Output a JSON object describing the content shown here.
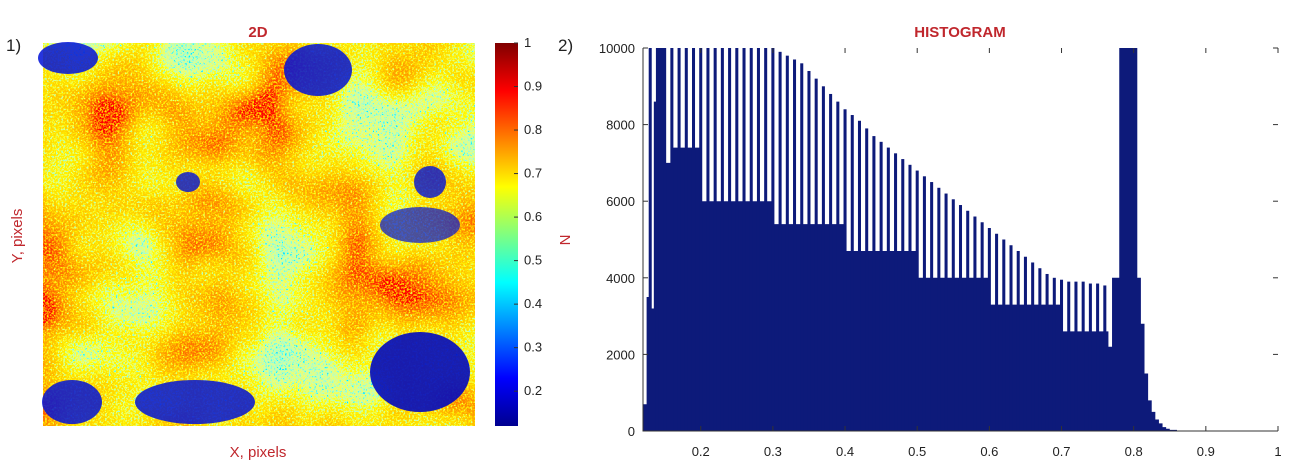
{
  "colors": {
    "title": "#c0272d",
    "bars": "#0d1a7a",
    "axis": "#333333",
    "colormap": [
      "#00008f",
      "#0000ff",
      "#0080ff",
      "#00ffff",
      "#80ff80",
      "#ffff00",
      "#ff8000",
      "#ff0000",
      "#800000"
    ]
  },
  "chart_data": [
    {
      "type": "heatmap",
      "panel_label": "1)",
      "title": "2D",
      "xlabel": "X, pixels",
      "ylabel": "Y, pixels",
      "colormap": "jet",
      "colorbar": {
        "ticks": [
          "0.2",
          "0.3",
          "0.4",
          "0.5",
          "0.6",
          "0.7",
          "0.8",
          "0.9",
          "1"
        ],
        "tick_values": [
          0.2,
          0.3,
          0.4,
          0.5,
          0.6,
          0.7,
          0.8,
          0.9,
          1.0
        ],
        "range": [
          0.12,
          1.0
        ]
      }
    },
    {
      "type": "bar",
      "panel_label": "2)",
      "title": "HISTOGRAM",
      "xlabel": "",
      "ylabel": "N",
      "xlim": [
        0.12,
        1.0
      ],
      "ylim": [
        0,
        10000
      ],
      "xticks": [
        "0.2",
        "0.3",
        "0.4",
        "0.5",
        "0.6",
        "0.7",
        "0.8",
        "0.9",
        "1"
      ],
      "xtick_values": [
        0.2,
        0.3,
        0.4,
        0.5,
        0.6,
        0.7,
        0.8,
        0.9,
        1.0
      ],
      "yticks": [
        "0",
        "2000",
        "4000",
        "6000",
        "8000",
        "10000"
      ],
      "ytick_values": [
        0,
        2000,
        4000,
        6000,
        8000,
        10000
      ],
      "envelope": {
        "x": [
          0.12,
          0.125,
          0.13,
          0.135,
          0.14,
          0.15,
          0.16,
          0.2,
          0.3,
          0.4,
          0.5,
          0.6,
          0.7,
          0.765,
          0.77,
          0.78,
          0.79,
          0.8,
          0.805,
          0.81,
          0.815,
          0.82,
          0.825,
          0.83,
          0.835,
          0.84,
          0.845,
          0.85,
          0.86,
          0.87
        ],
        "y": [
          700,
          3500,
          3200,
          8600,
          10000,
          7000,
          7400,
          6000,
          5400,
          4700,
          4000,
          3300,
          2600,
          2200,
          4000,
          10000,
          10000,
          10000,
          4000,
          2800,
          1500,
          800,
          500,
          300,
          200,
          100,
          60,
          30,
          10,
          0
        ]
      },
      "spikes": {
        "x": [
          0.13,
          0.14,
          0.15,
          0.16,
          0.17,
          0.18,
          0.19,
          0.2,
          0.21,
          0.22,
          0.23,
          0.24,
          0.25,
          0.26,
          0.27,
          0.28,
          0.29,
          0.3,
          0.31,
          0.32,
          0.33,
          0.34,
          0.35,
          0.36,
          0.37,
          0.38,
          0.39,
          0.4,
          0.41,
          0.42,
          0.43,
          0.44,
          0.45,
          0.46,
          0.47,
          0.48,
          0.49,
          0.5,
          0.51,
          0.52,
          0.53,
          0.54,
          0.55,
          0.56,
          0.57,
          0.58,
          0.59,
          0.6,
          0.61,
          0.62,
          0.63,
          0.64,
          0.65,
          0.66,
          0.67,
          0.68,
          0.69,
          0.7,
          0.71,
          0.72,
          0.73,
          0.74,
          0.75,
          0.76
        ],
        "y": [
          10000,
          10000,
          10000,
          10000,
          10000,
          10000,
          10000,
          10000,
          10000,
          10000,
          10000,
          10000,
          10000,
          10000,
          10000,
          10000,
          10000,
          10000,
          9900,
          9800,
          9700,
          9600,
          9400,
          9200,
          9000,
          8800,
          8600,
          8400,
          8250,
          8100,
          7900,
          7700,
          7550,
          7400,
          7250,
          7100,
          6950,
          6800,
          6650,
          6500,
          6350,
          6200,
          6050,
          5900,
          5750,
          5600,
          5450,
          5300,
          5150,
          5000,
          4850,
          4700,
          4550,
          4400,
          4250,
          4100,
          4000,
          3950,
          3900,
          3900,
          3900,
          3850,
          3850,
          3800
        ]
      }
    }
  ]
}
